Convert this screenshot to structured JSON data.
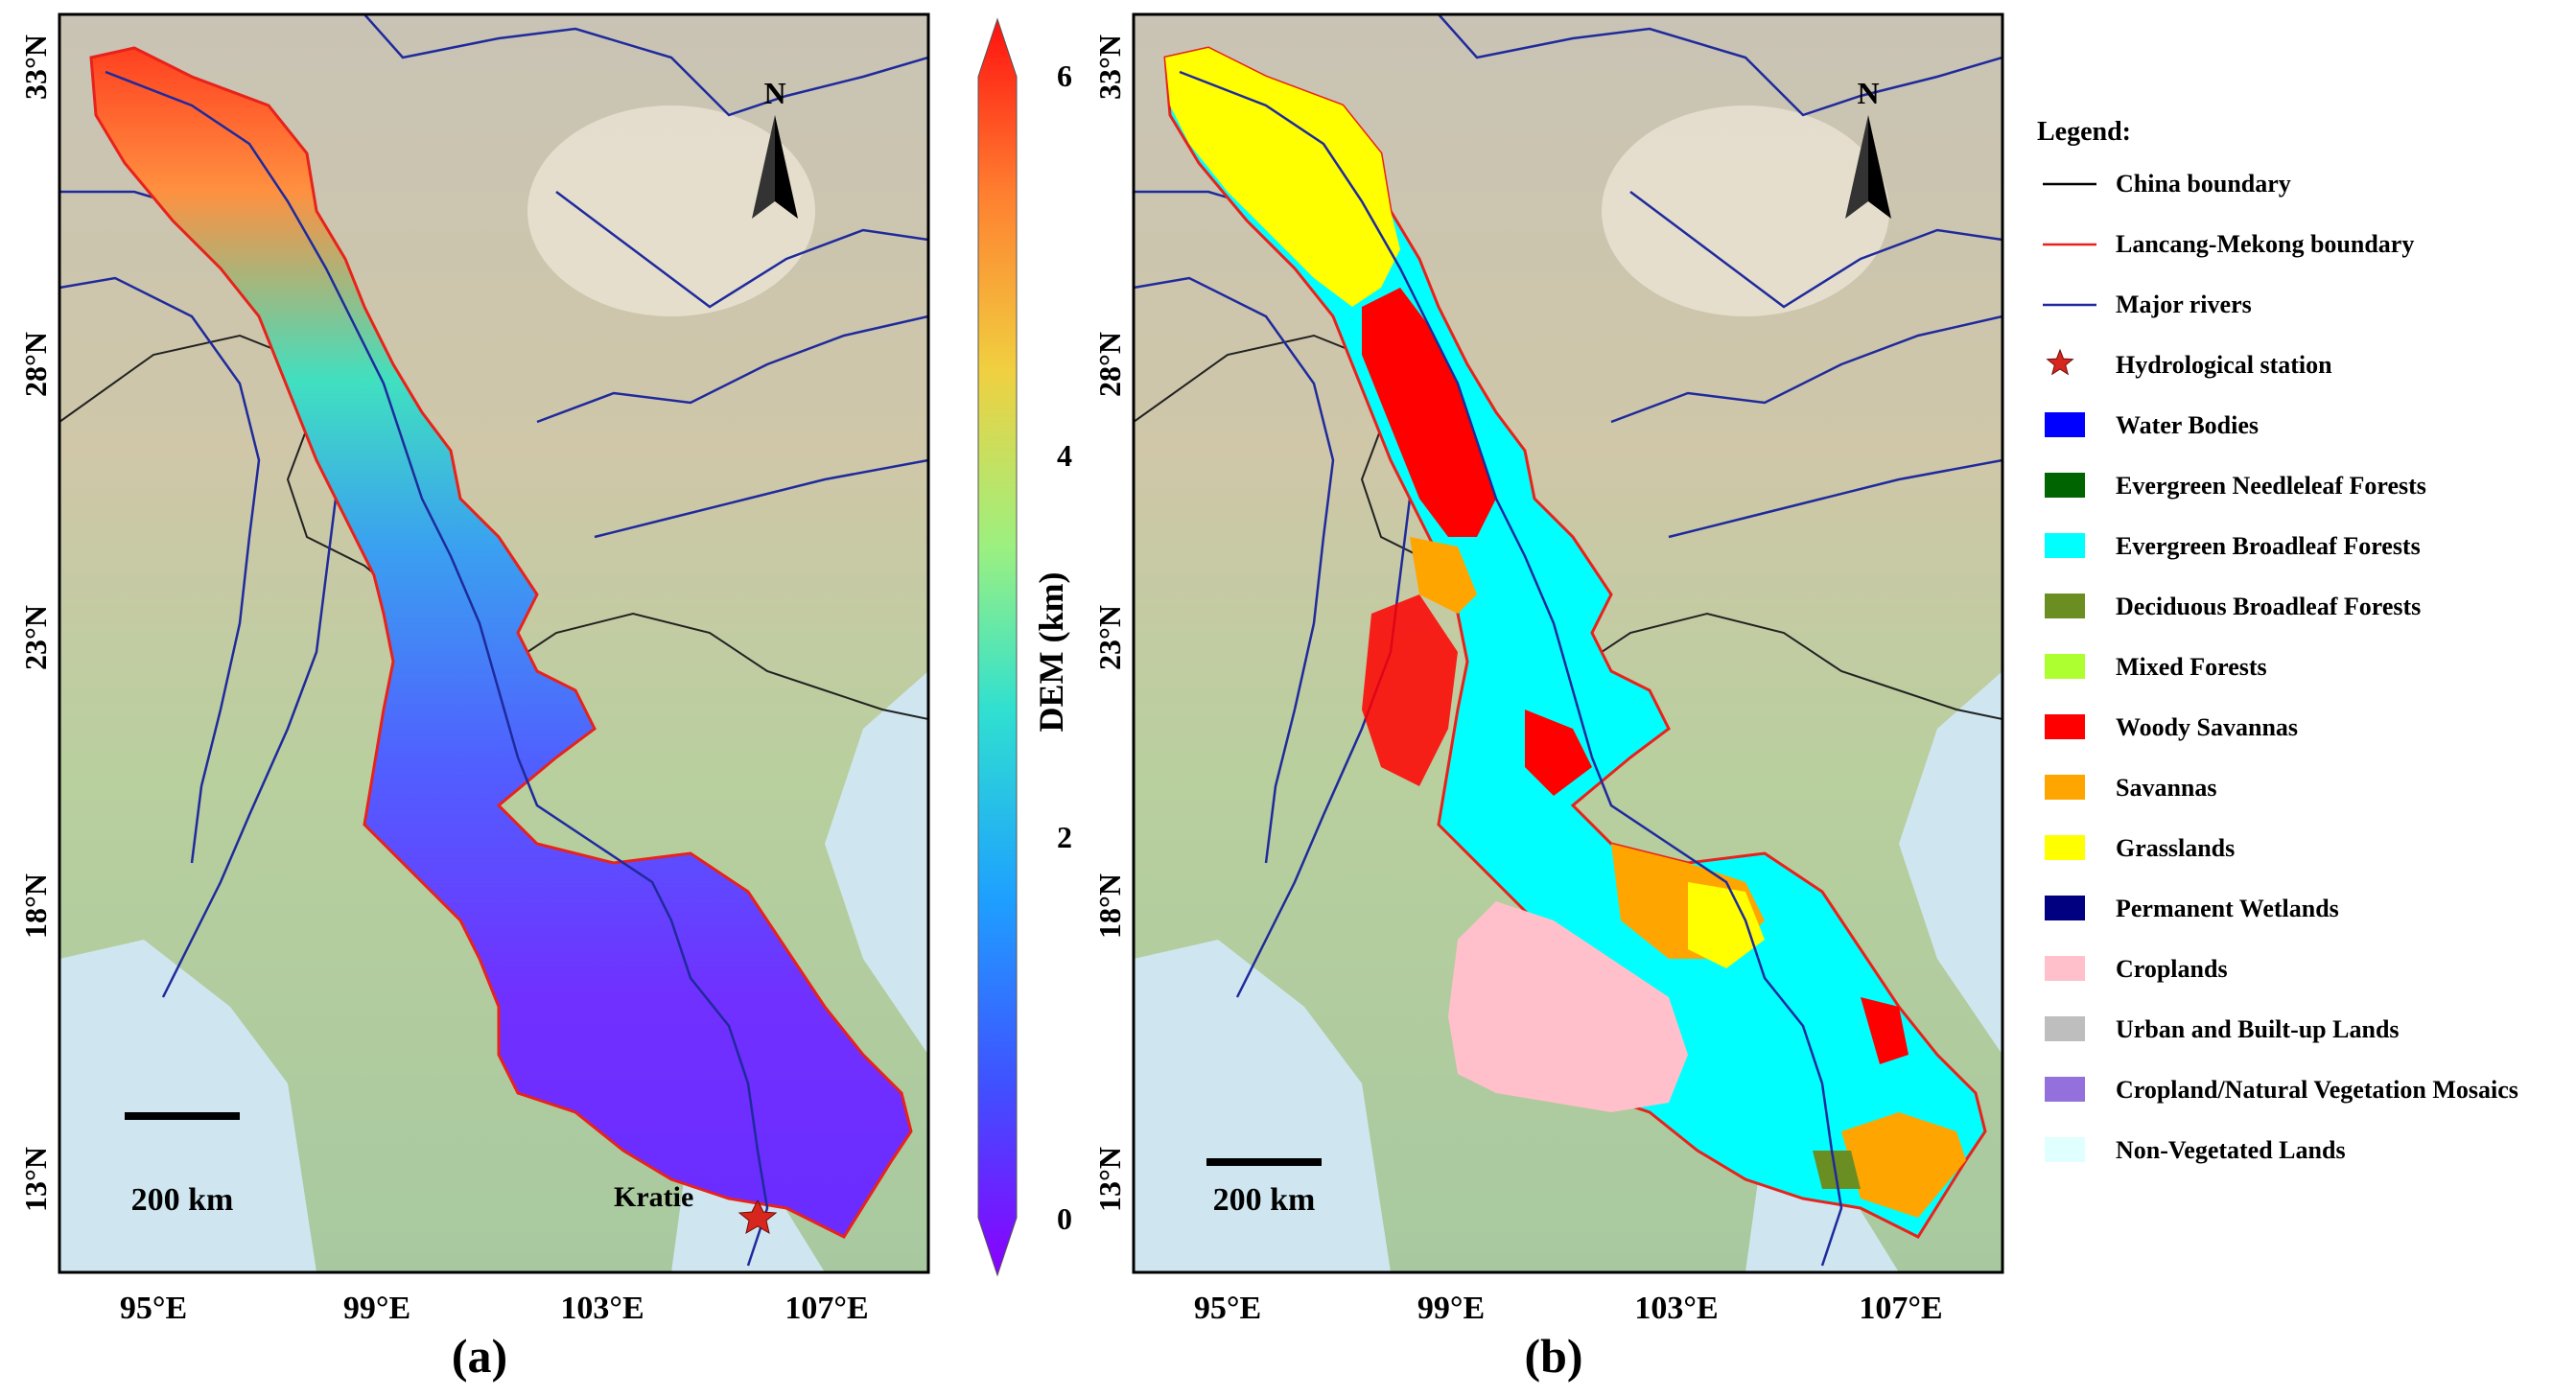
{
  "panels": [
    {
      "caption": "(a)"
    },
    {
      "caption": "(b)"
    }
  ],
  "axes": {
    "lat_ticks": [
      "33°N",
      "28°N",
      "23°N",
      "18°N",
      "13°N"
    ],
    "lon_ticks": [
      "95°E",
      "99°E",
      "103°E",
      "107°E"
    ]
  },
  "north_arrow": {
    "label": "N"
  },
  "scale_bar": {
    "label": "200 km"
  },
  "station": {
    "name": "Kratie"
  },
  "colorbar": {
    "title": "DEM (km)",
    "ticks": [
      "0",
      "2",
      "4",
      "6"
    ],
    "range": [
      0,
      6
    ],
    "colors": [
      "#8a00ff",
      "#4050ff",
      "#1ea0ff",
      "#30e0d0",
      "#9cf080",
      "#f0d040",
      "#ff8030",
      "#ff1010"
    ]
  },
  "legend": {
    "title": "Legend:",
    "items": [
      {
        "label": "China boundary",
        "kind": "line",
        "color": "#000000"
      },
      {
        "label": "Lancang-Mekong boundary",
        "kind": "line",
        "color": "#e8221b"
      },
      {
        "label": "Major rivers",
        "kind": "line",
        "color": "#1f2a9c"
      },
      {
        "label": "Hydrological station",
        "kind": "star",
        "color": "#d7261e"
      },
      {
        "label": "Water Bodies",
        "kind": "patch",
        "color": "#0000ff"
      },
      {
        "label": "Evergreen Needleleaf Forests",
        "kind": "patch",
        "color": "#006400"
      },
      {
        "label": "Evergreen Broadleaf Forests",
        "kind": "patch",
        "color": "#00ffff"
      },
      {
        "label": "Deciduous Broadleaf Forests",
        "kind": "patch",
        "color": "#6b8e23"
      },
      {
        "label": "Mixed Forests",
        "kind": "patch",
        "color": "#adff2f"
      },
      {
        "label": "Woody Savannas",
        "kind": "patch",
        "color": "#ff0000"
      },
      {
        "label": "Savannas",
        "kind": "patch",
        "color": "#ffa500"
      },
      {
        "label": "Grasslands",
        "kind": "patch",
        "color": "#ffff00"
      },
      {
        "label": "Permanent Wetlands",
        "kind": "patch",
        "color": "#000080"
      },
      {
        "label": "Croplands",
        "kind": "patch",
        "color": "#ffc0cb"
      },
      {
        "label": "Urban and Built-up Lands",
        "kind": "patch",
        "color": "#bebebe"
      },
      {
        "label": "Cropland/Natural Vegetation Mosaics",
        "kind": "patch",
        "color": "#9370db"
      },
      {
        "label": "Non-Vegetated Lands",
        "kind": "patch",
        "color": "#e0ffff"
      }
    ]
  }
}
